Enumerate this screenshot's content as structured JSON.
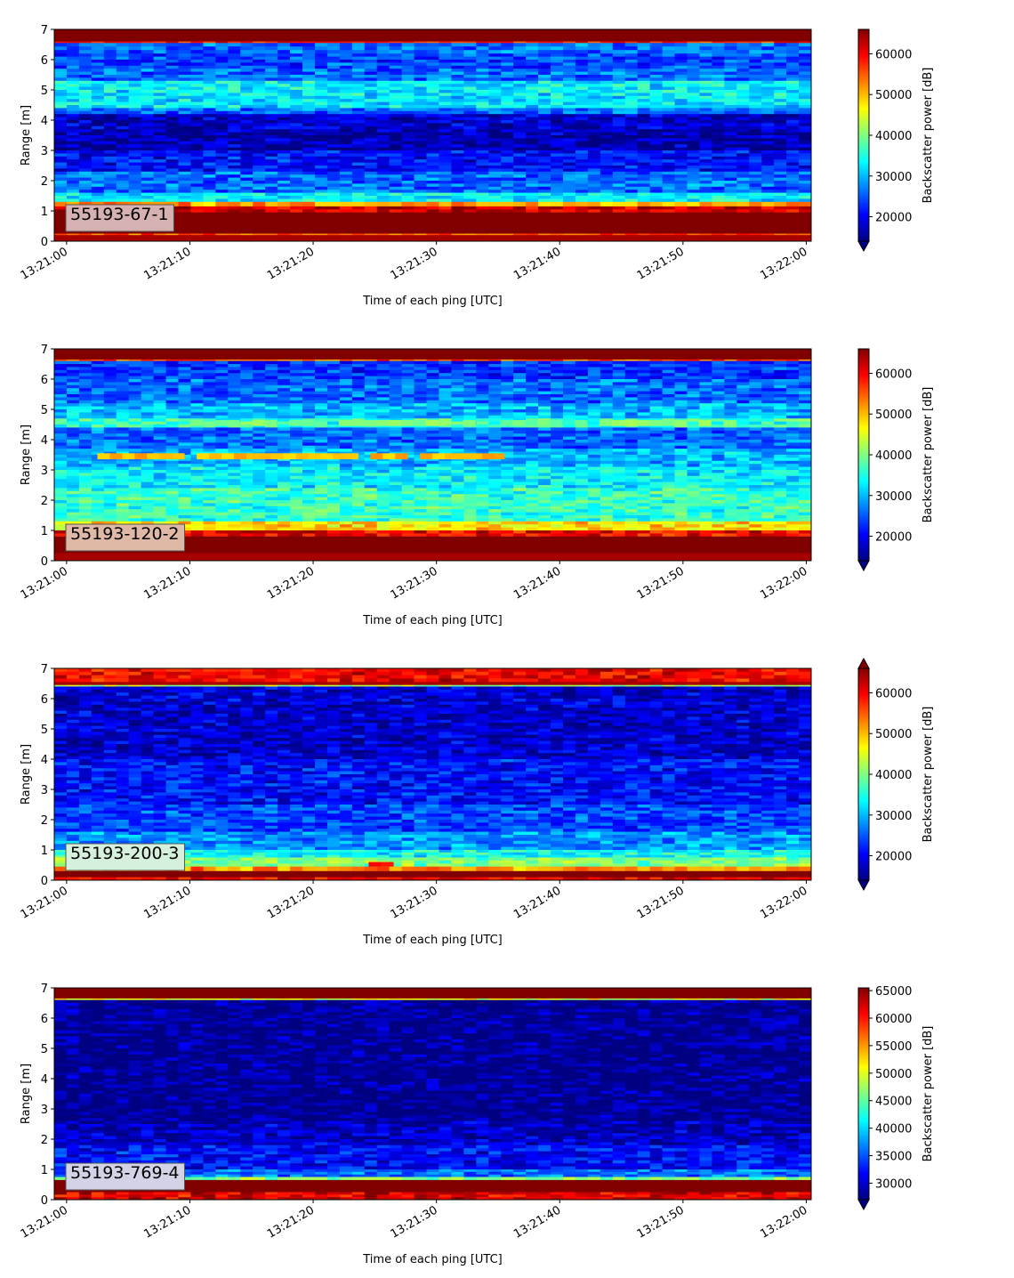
{
  "chart_data": [
    {
      "type": "heatmap",
      "label": "55193-67-1",
      "label_box_color": "#d6b1b1",
      "xlabel": "Time of each ping [UTC]",
      "ylabel": "Range [m]",
      "colorbar_label": "Backscatter power [dB]",
      "xticks": [
        "13:21:00",
        "13:21:10",
        "13:21:20",
        "13:21:30",
        "13:21:40",
        "13:21:50",
        "13:22:00"
      ],
      "xlim_seconds": [
        -1,
        60.4
      ],
      "ylim": [
        0,
        7
      ],
      "yticks": [
        0,
        1,
        2,
        3,
        4,
        5,
        6,
        7
      ],
      "cbar_range": [
        14000,
        66000
      ],
      "cbar_ticks": [
        20000,
        30000,
        40000,
        50000,
        60000
      ],
      "cbar_extend": "min",
      "layers": [
        {
          "from": 6.6,
          "to": 7.0,
          "value": 66000
        },
        {
          "from": 6.55,
          "to": 6.6,
          "value": 58000
        },
        {
          "from": 6.2,
          "to": 6.55,
          "value": 26000
        },
        {
          "from": 5.7,
          "to": 6.2,
          "value": 24000
        },
        {
          "from": 5.3,
          "to": 5.7,
          "value": 26000
        },
        {
          "from": 4.8,
          "to": 5.3,
          "value": 33000
        },
        {
          "from": 4.4,
          "to": 4.8,
          "value": 32000
        },
        {
          "from": 4.2,
          "to": 4.4,
          "value": 26000
        },
        {
          "from": 3.7,
          "to": 4.2,
          "value": 18000
        },
        {
          "from": 3.0,
          "to": 3.7,
          "value": 16500
        },
        {
          "from": 2.3,
          "to": 3.0,
          "value": 21000
        },
        {
          "from": 1.6,
          "to": 2.3,
          "value": 26000
        },
        {
          "from": 1.3,
          "to": 1.6,
          "value": 33000
        },
        {
          "from": 1.15,
          "to": 1.3,
          "value": 52000
        },
        {
          "from": 0.95,
          "to": 1.15,
          "value": 62000
        },
        {
          "from": 0.25,
          "to": 0.95,
          "value": 66000
        },
        {
          "from": 0.2,
          "to": 0.25,
          "value": 55000
        },
        {
          "from": 0.0,
          "to": 0.2,
          "value": 64000
        }
      ]
    },
    {
      "type": "heatmap",
      "label": "55193-120-2",
      "label_box_color": "#e0b9a6",
      "xlabel": "Time of each ping [UTC]",
      "ylabel": "Range [m]",
      "colorbar_label": "Backscatter power [dB]",
      "xticks": [
        "13:21:00",
        "13:21:10",
        "13:21:20",
        "13:21:30",
        "13:21:40",
        "13:21:50",
        "13:22:00"
      ],
      "xlim_seconds": [
        -1,
        60.4
      ],
      "ylim": [
        0,
        7
      ],
      "yticks": [
        0,
        1,
        2,
        3,
        4,
        5,
        6,
        7
      ],
      "cbar_range": [
        14000,
        66000
      ],
      "cbar_ticks": [
        20000,
        30000,
        40000,
        50000,
        60000
      ],
      "cbar_extend": "min",
      "layers": [
        {
          "from": 6.65,
          "to": 7.0,
          "value": 66000
        },
        {
          "from": 6.6,
          "to": 6.65,
          "value": 55000
        },
        {
          "from": 6.0,
          "to": 6.6,
          "value": 23000
        },
        {
          "from": 5.2,
          "to": 6.0,
          "value": 26000
        },
        {
          "from": 4.7,
          "to": 5.2,
          "value": 30000
        },
        {
          "from": 4.4,
          "to": 4.7,
          "value": 36000
        },
        {
          "from": 3.7,
          "to": 4.4,
          "value": 26000
        },
        {
          "from": 3.1,
          "to": 3.7,
          "value": 30000
        },
        {
          "from": 2.4,
          "to": 3.1,
          "value": 33000
        },
        {
          "from": 1.3,
          "to": 2.4,
          "value": 36000
        },
        {
          "from": 1.0,
          "to": 1.3,
          "value": 48000
        },
        {
          "from": 0.8,
          "to": 1.0,
          "value": 60000
        },
        {
          "from": 0.25,
          "to": 0.8,
          "value": 66000
        },
        {
          "from": 0.0,
          "to": 0.25,
          "value": 64000
        }
      ],
      "bands": [
        {
          "from": 3.35,
          "to": 3.55,
          "value": 50000,
          "t_start": 2.5,
          "t_end": 35.5
        },
        {
          "from": 4.45,
          "to": 4.65,
          "value": 40000,
          "t_start": 10,
          "t_end": 55
        }
      ]
    },
    {
      "type": "heatmap",
      "label": "55193-200-3",
      "label_box_color": "#d5f1dc",
      "xlabel": "Time of each ping [UTC]",
      "ylabel": "Range [m]",
      "colorbar_label": "Backscatter power [dB]",
      "xticks": [
        "13:21:00",
        "13:21:10",
        "13:21:20",
        "13:21:30",
        "13:21:40",
        "13:21:50",
        "13:22:00"
      ],
      "xlim_seconds": [
        -1,
        60.4
      ],
      "ylim": [
        0,
        7
      ],
      "yticks": [
        0,
        1,
        2,
        3,
        4,
        5,
        6,
        7
      ],
      "cbar_range": [
        14000,
        66000
      ],
      "cbar_ticks": [
        20000,
        30000,
        40000,
        50000,
        60000
      ],
      "cbar_extend": "both",
      "layers": [
        {
          "from": 6.55,
          "to": 7.0,
          "value": 60000
        },
        {
          "from": 6.45,
          "to": 6.55,
          "value": 64000
        },
        {
          "from": 6.4,
          "to": 6.45,
          "value": 42000
        },
        {
          "from": 4.0,
          "to": 6.4,
          "value": 18000
        },
        {
          "from": 2.5,
          "to": 4.0,
          "value": 21000
        },
        {
          "from": 1.6,
          "to": 2.5,
          "value": 24000
        },
        {
          "from": 1.0,
          "to": 1.6,
          "value": 28000
        },
        {
          "from": 0.75,
          "to": 1.0,
          "value": 34000
        },
        {
          "from": 0.45,
          "to": 0.75,
          "value": 40000
        },
        {
          "from": 0.3,
          "to": 0.45,
          "value": 52000
        },
        {
          "from": 0.1,
          "to": 0.3,
          "value": 66000
        },
        {
          "from": 0.0,
          "to": 0.1,
          "value": 60000
        }
      ],
      "bands": [
        {
          "from": 0.45,
          "to": 0.6,
          "value": 58000,
          "t_start": 24.5,
          "t_end": 26.5
        }
      ]
    },
    {
      "type": "heatmap",
      "label": "55193-769-4",
      "label_box_color": "#d3d3e8",
      "xlabel": "Time of each ping [UTC]",
      "ylabel": "Range [m]",
      "colorbar_label": "Backscatter power [dB]",
      "xticks": [
        "13:21:00",
        "13:21:10",
        "13:21:20",
        "13:21:30",
        "13:21:40",
        "13:21:50",
        "13:22:00"
      ],
      "xlim_seconds": [
        -1,
        60.4
      ],
      "ylim": [
        0,
        7
      ],
      "yticks": [
        0,
        1,
        2,
        3,
        4,
        5,
        6,
        7
      ],
      "cbar_range": [
        27000,
        65500
      ],
      "cbar_ticks": [
        30000,
        35000,
        40000,
        45000,
        50000,
        55000,
        60000,
        65000
      ],
      "cbar_extend": "min",
      "layers": [
        {
          "from": 6.65,
          "to": 7.0,
          "value": 65500
        },
        {
          "from": 6.6,
          "to": 6.65,
          "value": 50000
        },
        {
          "from": 2.6,
          "to": 6.6,
          "value": 27500
        },
        {
          "from": 1.8,
          "to": 2.6,
          "value": 29500
        },
        {
          "from": 1.0,
          "to": 1.8,
          "value": 32000
        },
        {
          "from": 0.75,
          "to": 1.0,
          "value": 36000
        },
        {
          "from": 0.65,
          "to": 0.75,
          "value": 46000
        },
        {
          "from": 0.25,
          "to": 0.65,
          "value": 65500
        },
        {
          "from": 0.0,
          "to": 0.25,
          "value": 62000
        }
      ]
    }
  ]
}
